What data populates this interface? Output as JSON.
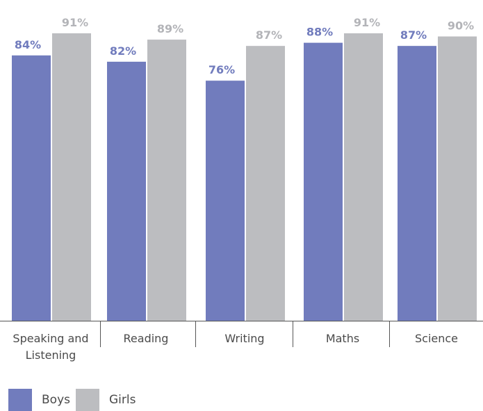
{
  "chart_data": {
    "type": "bar",
    "categories": [
      "Speaking and Listening",
      "Reading",
      "Writing",
      "Maths",
      "Science"
    ],
    "category_lines": [
      [
        "Speaking and",
        "Listening"
      ],
      [
        "Reading"
      ],
      [
        "Writing"
      ],
      [
        "Maths"
      ],
      [
        "Science"
      ]
    ],
    "series": [
      {
        "name": "Boys",
        "values": [
          84,
          82,
          76,
          88,
          87
        ],
        "labels": [
          "84%",
          "82%",
          "76%",
          "88%",
          "87%"
        ],
        "color": "#717cbd",
        "label_color": "#717cbd"
      },
      {
        "name": "Girls",
        "values": [
          91,
          89,
          87,
          91,
          90
        ],
        "labels": [
          "91%",
          "89%",
          "87%",
          "91%",
          "90%"
        ],
        "color": "#bcbdc0",
        "label_color": "#b3b4b8"
      }
    ],
    "ylim": [
      0,
      100
    ],
    "grid": false,
    "legend_position": "bottom-left",
    "axis_color": "#555555",
    "category_label_color": "#4a4a4a"
  }
}
